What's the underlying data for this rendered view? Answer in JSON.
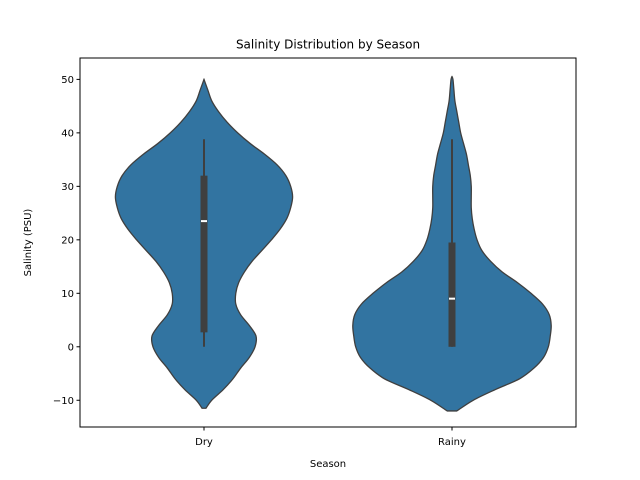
{
  "chart_data": {
    "type": "violin",
    "title": "Salinity Distribution by Season",
    "xlabel": "Season",
    "ylabel": "Salinity (PSU)",
    "ylim": [
      -15,
      54
    ],
    "yticks": [
      -10,
      0,
      10,
      20,
      30,
      40,
      50
    ],
    "categories": [
      "Dry",
      "Rainy"
    ],
    "violin_color": "#3274a1",
    "box_color": "#3f3f3f",
    "median_color": "#ffffff",
    "outline_color": "#3f3f3f",
    "grid": false,
    "violins": [
      {
        "category": "Dry",
        "min": 0,
        "q1": 2.7,
        "median": 23.5,
        "q3": 32,
        "max": 38.8,
        "density": [
          [
            -11.5,
            0.02
          ],
          [
            -10,
            0.08
          ],
          [
            -8,
            0.2
          ],
          [
            -6,
            0.3
          ],
          [
            -4,
            0.38
          ],
          [
            -2,
            0.47
          ],
          [
            0,
            0.53
          ],
          [
            2,
            0.54
          ],
          [
            4,
            0.47
          ],
          [
            6,
            0.38
          ],
          [
            8,
            0.33
          ],
          [
            10,
            0.33
          ],
          [
            12,
            0.36
          ],
          [
            14,
            0.42
          ],
          [
            16,
            0.5
          ],
          [
            18,
            0.6
          ],
          [
            20,
            0.7
          ],
          [
            22,
            0.79
          ],
          [
            24,
            0.86
          ],
          [
            26,
            0.9
          ],
          [
            28,
            0.92
          ],
          [
            30,
            0.9
          ],
          [
            32,
            0.85
          ],
          [
            34,
            0.76
          ],
          [
            36,
            0.63
          ],
          [
            38,
            0.48
          ],
          [
            40,
            0.35
          ],
          [
            42,
            0.24
          ],
          [
            44,
            0.15
          ],
          [
            46,
            0.08
          ],
          [
            48,
            0.04
          ],
          [
            49.5,
            0.01
          ],
          [
            50,
            0.0
          ]
        ]
      },
      {
        "category": "Rainy",
        "min": 0,
        "q1": 0,
        "median": 9,
        "q3": 19.5,
        "max": 38.8,
        "density": [
          [
            -12,
            0.05
          ],
          [
            -10,
            0.22
          ],
          [
            -8,
            0.45
          ],
          [
            -6,
            0.7
          ],
          [
            -4,
            0.85
          ],
          [
            -2,
            0.95
          ],
          [
            0,
            1.0
          ],
          [
            2,
            1.02
          ],
          [
            4,
            1.03
          ],
          [
            6,
            1.01
          ],
          [
            8,
            0.94
          ],
          [
            10,
            0.82
          ],
          [
            12,
            0.68
          ],
          [
            14,
            0.52
          ],
          [
            16,
            0.4
          ],
          [
            18,
            0.31
          ],
          [
            20,
            0.26
          ],
          [
            22,
            0.23
          ],
          [
            24,
            0.21
          ],
          [
            26,
            0.2
          ],
          [
            28,
            0.2
          ],
          [
            30,
            0.2
          ],
          [
            32,
            0.19
          ],
          [
            34,
            0.17
          ],
          [
            36,
            0.15
          ],
          [
            38,
            0.12
          ],
          [
            40,
            0.09
          ],
          [
            42,
            0.07
          ],
          [
            44,
            0.05
          ],
          [
            46,
            0.03
          ],
          [
            48,
            0.02
          ],
          [
            50,
            0.01
          ],
          [
            50.5,
            0.0
          ]
        ]
      }
    ]
  }
}
